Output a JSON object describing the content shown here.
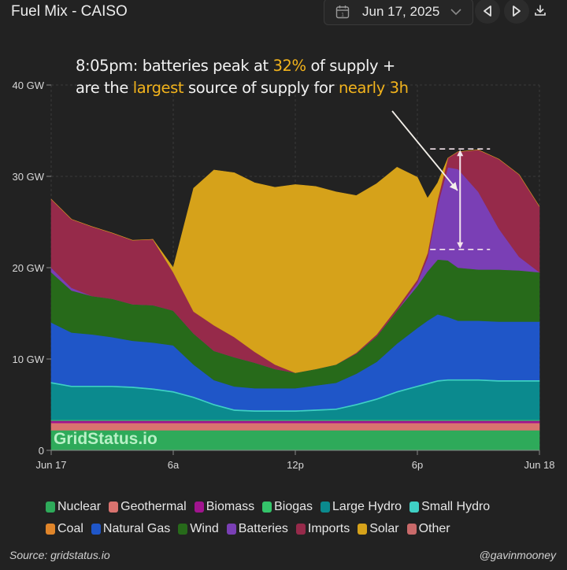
{
  "header": {
    "title": "Fuel Mix - CAISO",
    "date_value": "Jun 17, 2025",
    "icons": {
      "calendar": "calendar-icon",
      "dropdown": "chevron-down-icon",
      "prev": "triangle-left-icon",
      "next": "triangle-right-icon",
      "download": "download-icon"
    }
  },
  "annotation": {
    "line1_a": "8:05pm: batteries peak at ",
    "line1_hl": "32%",
    "line1_b": " of supply +",
    "line2_a": "are the ",
    "line2_hl1": "largest",
    "line2_b": " source of supply for ",
    "line2_hl2": "nearly 3h",
    "highlight_color": "#f2b31c"
  },
  "watermark": "GridStatus.io",
  "footer": {
    "source": "Source: gridstatus.io",
    "handle": "@gavinmooney"
  },
  "chart_data": {
    "type": "area",
    "stacked": true,
    "title": "Fuel Mix - CAISO",
    "xlabel": "",
    "ylabel": "",
    "x_unit": "hours since Jun 17 00:00",
    "x": [
      0,
      1,
      2,
      3,
      4,
      5,
      6,
      7,
      8,
      9,
      10,
      11,
      12,
      13,
      14,
      15,
      16,
      17,
      18,
      18.5,
      19,
      19.5,
      20,
      21,
      22,
      23,
      24
    ],
    "x_ticks": [
      {
        "value": 0,
        "label": "Jun 17"
      },
      {
        "value": 6,
        "label": "6a"
      },
      {
        "value": 12,
        "label": "12p"
      },
      {
        "value": 18,
        "label": "6p"
      },
      {
        "value": 24,
        "label": "Jun 18"
      }
    ],
    "y_ticks": [
      {
        "value": 0,
        "label": "0"
      },
      {
        "value": 10,
        "label": "10 GW"
      },
      {
        "value": 20,
        "label": "20 GW"
      },
      {
        "value": 30,
        "label": "30 GW"
      },
      {
        "value": 40,
        "label": "40 GW"
      }
    ],
    "ylim": [
      0,
      40
    ],
    "xlim": [
      0,
      24
    ],
    "grid": true,
    "legend_position": "bottom",
    "series": [
      {
        "name": "Nuclear",
        "color": "#2eaa5a",
        "values": [
          2.2,
          2.2,
          2.2,
          2.2,
          2.2,
          2.2,
          2.2,
          2.2,
          2.2,
          2.2,
          2.2,
          2.2,
          2.2,
          2.2,
          2.2,
          2.2,
          2.2,
          2.2,
          2.2,
          2.2,
          2.2,
          2.2,
          2.2,
          2.2,
          2.2,
          2.2,
          2.2
        ]
      },
      {
        "name": "Geothermal",
        "color": "#d9736f",
        "values": [
          0.8,
          0.8,
          0.8,
          0.8,
          0.8,
          0.8,
          0.8,
          0.8,
          0.8,
          0.8,
          0.8,
          0.8,
          0.8,
          0.8,
          0.8,
          0.8,
          0.8,
          0.8,
          0.8,
          0.8,
          0.8,
          0.8,
          0.8,
          0.8,
          0.8,
          0.8,
          0.8
        ]
      },
      {
        "name": "Biomass",
        "color": "#a0148e",
        "values": [
          0.25,
          0.25,
          0.25,
          0.25,
          0.25,
          0.25,
          0.25,
          0.25,
          0.25,
          0.25,
          0.25,
          0.25,
          0.25,
          0.25,
          0.25,
          0.25,
          0.25,
          0.25,
          0.25,
          0.25,
          0.25,
          0.25,
          0.25,
          0.25,
          0.25,
          0.25,
          0.25
        ]
      },
      {
        "name": "Biogas",
        "color": "#34c46a",
        "values": [
          0.1,
          0.1,
          0.1,
          0.1,
          0.1,
          0.1,
          0.1,
          0.1,
          0.1,
          0.1,
          0.1,
          0.1,
          0.1,
          0.1,
          0.1,
          0.1,
          0.1,
          0.1,
          0.1,
          0.1,
          0.1,
          0.1,
          0.1,
          0.1,
          0.1,
          0.1,
          0.1
        ]
      },
      {
        "name": "Large Hydro",
        "color": "#0b8a8e",
        "values": [
          4.0,
          3.6,
          3.6,
          3.6,
          3.5,
          3.3,
          3.0,
          2.4,
          1.6,
          1.0,
          0.9,
          0.9,
          0.9,
          1.0,
          1.1,
          1.6,
          2.2,
          3.0,
          3.6,
          3.9,
          4.2,
          4.3,
          4.3,
          4.3,
          4.2,
          4.2,
          4.2
        ]
      },
      {
        "name": "Small Hydro",
        "color": "#3fd0c4",
        "values": [
          0.15,
          0.15,
          0.15,
          0.15,
          0.15,
          0.15,
          0.15,
          0.15,
          0.15,
          0.15,
          0.15,
          0.15,
          0.15,
          0.15,
          0.15,
          0.15,
          0.15,
          0.15,
          0.15,
          0.15,
          0.15,
          0.15,
          0.15,
          0.15,
          0.15,
          0.15,
          0.15
        ]
      },
      {
        "name": "Coal",
        "color": "#e0852a",
        "values": [
          0,
          0,
          0,
          0,
          0,
          0,
          0,
          0,
          0,
          0,
          0,
          0,
          0,
          0,
          0,
          0,
          0,
          0,
          0,
          0,
          0,
          0,
          0,
          0,
          0,
          0,
          0
        ]
      },
      {
        "name": "Natural Gas",
        "color": "#1f56c8",
        "values": [
          6.5,
          5.8,
          5.6,
          5.3,
          5.0,
          5.0,
          5.0,
          3.5,
          2.6,
          2.5,
          2.4,
          2.4,
          2.4,
          2.6,
          2.8,
          3.3,
          4.0,
          5.2,
          6.3,
          6.8,
          7.2,
          6.8,
          6.4,
          6.4,
          6.4,
          6.4,
          6.4
        ]
      },
      {
        "name": "Wind",
        "color": "#276a1a",
        "values": [
          5.5,
          4.6,
          4.2,
          4.2,
          4.0,
          4.1,
          3.8,
          3.4,
          3.2,
          3.2,
          2.8,
          2.1,
          1.7,
          1.8,
          2.0,
          2.2,
          2.8,
          3.6,
          4.6,
          5.4,
          6.0,
          6.2,
          5.8,
          5.6,
          5.7,
          5.6,
          5.4
        ]
      },
      {
        "name": "Batteries",
        "color": "#7a3fb5",
        "values": [
          0.5,
          0.3,
          0,
          0,
          0,
          0,
          0,
          0,
          0,
          0,
          0,
          0,
          0,
          0,
          0,
          0,
          0,
          0,
          0.4,
          1.5,
          6.0,
          10.2,
          10.8,
          8.5,
          4.5,
          1.5,
          0
        ]
      },
      {
        "name": "Imports",
        "color": "#962a4a",
        "values": [
          7.5,
          7.5,
          7.6,
          7.2,
          7.0,
          7.2,
          4.2,
          2.4,
          2.8,
          2.2,
          1.2,
          0.5,
          0,
          0,
          0,
          0.1,
          0.2,
          0.3,
          0.3,
          0.5,
          0.6,
          1.0,
          1.9,
          4.6,
          7.6,
          9.0,
          7.2
        ]
      },
      {
        "name": "Solar",
        "color": "#d6a21a",
        "values": [
          0,
          0,
          0,
          0,
          0,
          0,
          0.5,
          13.5,
          17.0,
          18.0,
          18.5,
          19.4,
          20.6,
          20.0,
          18.9,
          17.2,
          16.5,
          15.4,
          11.2,
          6.0,
          1.8,
          0.0,
          0,
          0,
          0,
          0,
          0
        ]
      },
      {
        "name": "Other",
        "color": "#c96a6a",
        "values": [
          0,
          0,
          0,
          0,
          0,
          0,
          0,
          0,
          0,
          0,
          0,
          0,
          0,
          0,
          0,
          0,
          0,
          0,
          0,
          0,
          0,
          0,
          0,
          0,
          0,
          0,
          0
        ]
      }
    ],
    "callout": {
      "time": "8:05pm",
      "battery_share_pct": 32,
      "peak_top_gw": 33.0,
      "battery_base_gw": 22.0
    }
  }
}
